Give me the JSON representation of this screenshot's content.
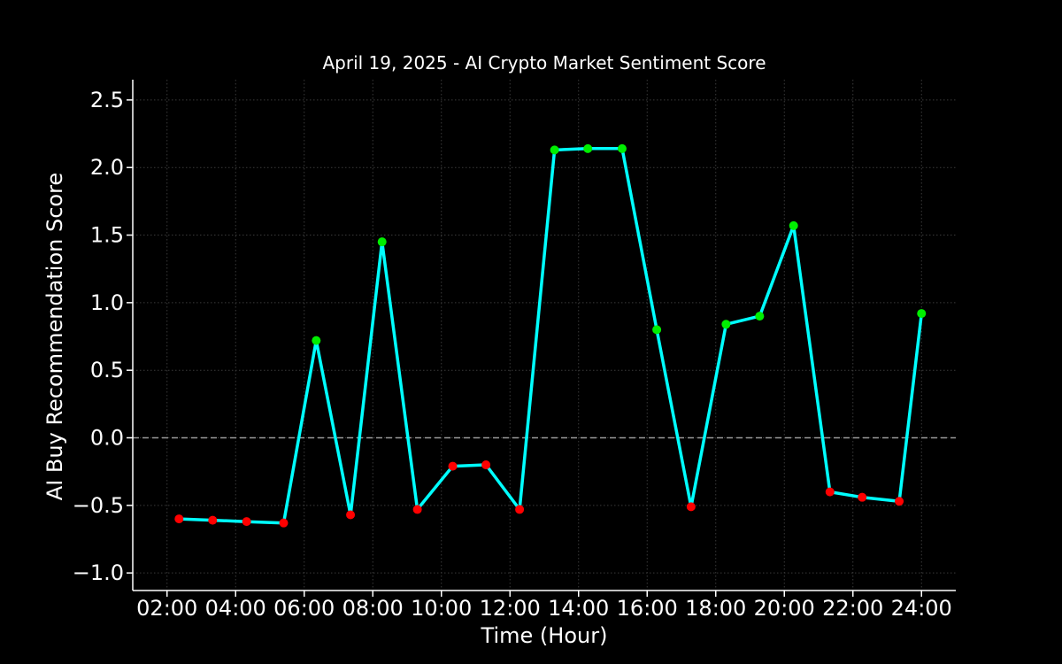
{
  "chart_data": {
    "type": "line",
    "title": "April 19, 2025 - AI Crypto Market Sentiment Score",
    "xlabel": "Time (Hour)",
    "ylabel": "AI Buy Recommendation Score",
    "xlim": [
      1.0,
      25.0
    ],
    "ylim": [
      -1.13,
      2.65
    ],
    "x_ticks": [
      {
        "value": 2,
        "label": "02:00"
      },
      {
        "value": 4,
        "label": "04:00"
      },
      {
        "value": 6,
        "label": "06:00"
      },
      {
        "value": 8,
        "label": "08:00"
      },
      {
        "value": 10,
        "label": "10:00"
      },
      {
        "value": 12,
        "label": "12:00"
      },
      {
        "value": 14,
        "label": "14:00"
      },
      {
        "value": 16,
        "label": "16:00"
      },
      {
        "value": 18,
        "label": "18:00"
      },
      {
        "value": 20,
        "label": "20:00"
      },
      {
        "value": 22,
        "label": "22:00"
      },
      {
        "value": 24,
        "label": "24:00"
      }
    ],
    "y_ticks": [
      {
        "value": -1.0,
        "label": "−1.0"
      },
      {
        "value": -0.5,
        "label": "−0.5"
      },
      {
        "value": 0.0,
        "label": "0.0"
      },
      {
        "value": 0.5,
        "label": "0.5"
      },
      {
        "value": 1.0,
        "label": "1.0"
      },
      {
        "value": 1.5,
        "label": "1.5"
      },
      {
        "value": 2.0,
        "label": "2.0"
      },
      {
        "value": 2.5,
        "label": "2.5"
      }
    ],
    "grid": true,
    "reference_line_y": 0.0,
    "colors": {
      "background": "#000000",
      "line": "#00ffff",
      "positive_marker": "#00ee00",
      "negative_marker": "#ff0000",
      "grid": "#3a3a3a",
      "zero_line": "#9a9a9a",
      "text": "#ffffff"
    },
    "series": [
      {
        "points": [
          {
            "x": 2.35,
            "y": -0.6
          },
          {
            "x": 3.33,
            "y": -0.61
          },
          {
            "x": 4.32,
            "y": -0.62
          },
          {
            "x": 5.4,
            "y": -0.63
          },
          {
            "x": 6.35,
            "y": 0.72
          },
          {
            "x": 7.35,
            "y": -0.57
          },
          {
            "x": 8.27,
            "y": 1.45
          },
          {
            "x": 9.3,
            "y": -0.53
          },
          {
            "x": 10.33,
            "y": -0.21
          },
          {
            "x": 11.3,
            "y": -0.2
          },
          {
            "x": 12.28,
            "y": -0.53
          },
          {
            "x": 13.3,
            "y": 2.13
          },
          {
            "x": 14.27,
            "y": 2.14
          },
          {
            "x": 15.27,
            "y": 2.14
          },
          {
            "x": 16.28,
            "y": 0.8
          },
          {
            "x": 17.28,
            "y": -0.51
          },
          {
            "x": 18.3,
            "y": 0.84
          },
          {
            "x": 19.28,
            "y": 0.9
          },
          {
            "x": 20.27,
            "y": 1.57
          },
          {
            "x": 21.33,
            "y": -0.4
          },
          {
            "x": 22.27,
            "y": -0.44
          },
          {
            "x": 23.35,
            "y": -0.47
          },
          {
            "x": 24.0,
            "y": 0.92
          }
        ]
      }
    ]
  }
}
